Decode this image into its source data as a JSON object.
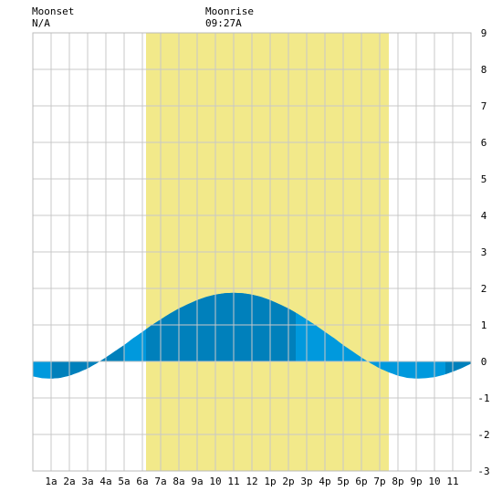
{
  "moon": {
    "moonset_title": "Moonset",
    "moonset_time": "N/A",
    "moonrise_title": "Moonrise",
    "moonrise_time": "09:27A"
  },
  "chart_data": {
    "type": "area",
    "title": "",
    "xlabel": "",
    "ylabel": "",
    "xlim": [
      0,
      24
    ],
    "ylim": [
      -3,
      9
    ],
    "grid": true,
    "x_tick_labels": [
      "1a",
      "2a",
      "3a",
      "4a",
      "5a",
      "6a",
      "7a",
      "8a",
      "9a",
      "10",
      "11",
      "12",
      "1p",
      "2p",
      "3p",
      "4p",
      "5p",
      "6p",
      "7p",
      "8p",
      "9p",
      "10",
      "11"
    ],
    "y_ticks": [
      -3,
      -2,
      -1,
      0,
      1,
      2,
      3,
      4,
      5,
      6,
      7,
      8,
      9
    ],
    "daylight": {
      "start": 6.2,
      "end": 19.5
    },
    "tide_curve": {
      "x": [
        0,
        0.5,
        1,
        1.5,
        2,
        2.5,
        3,
        3.5,
        4,
        4.5,
        5,
        5.5,
        6,
        6.5,
        7,
        7.5,
        8,
        8.5,
        9,
        9.5,
        10,
        10.5,
        11,
        11.5,
        12,
        12.5,
        13,
        13.5,
        14,
        14.5,
        15,
        15.5,
        16,
        16.5,
        17,
        17.5,
        18,
        18.5,
        19,
        19.5,
        20,
        20.5,
        21,
        21.5,
        22,
        22.5,
        23,
        23.5,
        24
      ],
      "y": [
        -0.41,
        -0.46,
        -0.47,
        -0.45,
        -0.39,
        -0.3,
        -0.19,
        -0.05,
        0.11,
        0.28,
        0.45,
        0.64,
        0.81,
        0.99,
        1.15,
        1.31,
        1.45,
        1.57,
        1.68,
        1.77,
        1.83,
        1.87,
        1.88,
        1.87,
        1.83,
        1.77,
        1.68,
        1.57,
        1.45,
        1.31,
        1.15,
        0.99,
        0.81,
        0.64,
        0.45,
        0.28,
        0.11,
        -0.05,
        -0.19,
        -0.3,
        -0.39,
        -0.45,
        -0.47,
        -0.46,
        -0.43,
        -0.37,
        -0.28,
        -0.18,
        -0.06
      ]
    },
    "shaded_segments": [
      [
        1,
        5
      ],
      [
        6.2,
        14.4
      ],
      [
        22.6,
        24
      ]
    ],
    "colors": {
      "daylight": "#f2e98a",
      "tide_light": "#0099dd",
      "tide_dark": "#0080bb",
      "grid": "#c8c8c8",
      "plot_bg": "#ffffff"
    }
  }
}
